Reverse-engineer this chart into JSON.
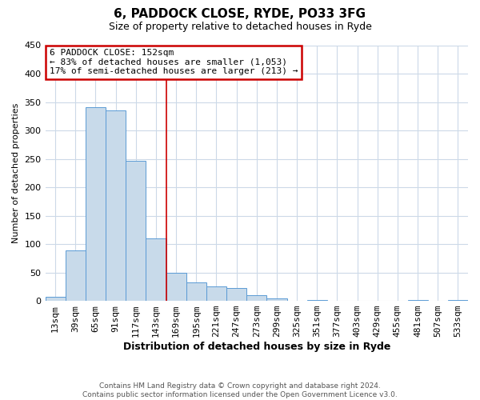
{
  "title": "6, PADDOCK CLOSE, RYDE, PO33 3FG",
  "subtitle": "Size of property relative to detached houses in Ryde",
  "xlabel": "Distribution of detached houses by size in Ryde",
  "ylabel": "Number of detached properties",
  "footer_line1": "Contains HM Land Registry data © Crown copyright and database right 2024.",
  "footer_line2": "Contains public sector information licensed under the Open Government Licence v3.0.",
  "annotation_line1": "6 PADDOCK CLOSE: 152sqm",
  "annotation_line2": "← 83% of detached houses are smaller (1,053)",
  "annotation_line3": "17% of semi-detached houses are larger (213) →",
  "bar_color": "#c8daea",
  "bar_edge_color": "#5b9bd5",
  "vline_color": "#cc0000",
  "vline_x_index": 5.5,
  "categories": [
    "13sqm",
    "39sqm",
    "65sqm",
    "91sqm",
    "117sqm",
    "143sqm",
    "169sqm",
    "195sqm",
    "221sqm",
    "247sqm",
    "273sqm",
    "299sqm",
    "325sqm",
    "351sqm",
    "377sqm",
    "403sqm",
    "429sqm",
    "455sqm",
    "481sqm",
    "507sqm",
    "533sqm"
  ],
  "values": [
    7,
    89,
    341,
    335,
    246,
    110,
    50,
    33,
    26,
    22,
    10,
    5,
    0,
    1,
    0,
    0,
    0,
    0,
    1,
    0,
    1
  ],
  "ylim": [
    0,
    450
  ],
  "yticks": [
    0,
    50,
    100,
    150,
    200,
    250,
    300,
    350,
    400,
    450
  ],
  "background_color": "#ffffff",
  "grid_color": "#ccd9e8",
  "title_fontsize": 11,
  "subtitle_fontsize": 9,
  "xlabel_fontsize": 9,
  "ylabel_fontsize": 8,
  "tick_fontsize": 8,
  "annotation_fontsize": 8,
  "footer_fontsize": 6.5
}
